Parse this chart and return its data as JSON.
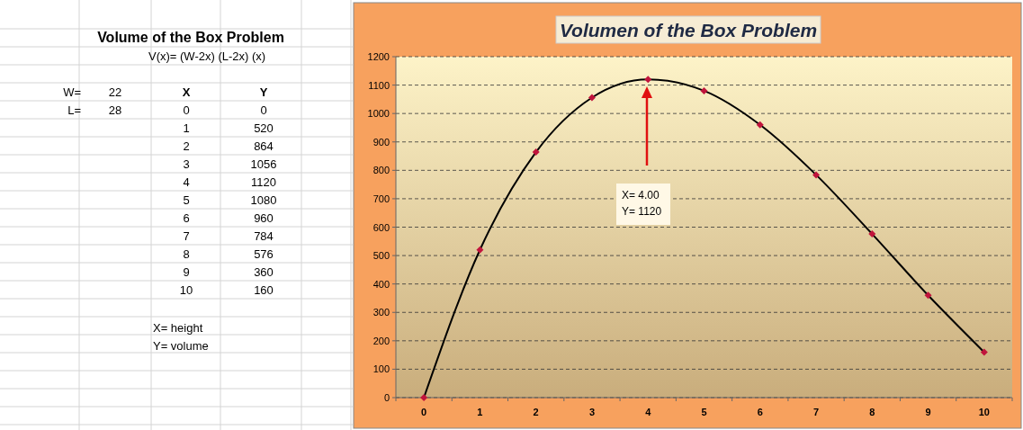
{
  "chart_data": {
    "type": "line",
    "title": "Volumen of the Box Problem",
    "categories": [
      "0",
      "1",
      "2",
      "3",
      "4",
      "5",
      "6",
      "7",
      "8",
      "9",
      "10"
    ],
    "series": [
      {
        "color": "#000000",
        "values": [
          0,
          520,
          864,
          1056,
          1120,
          1080,
          960,
          784,
          576,
          360,
          160
        ]
      }
    ],
    "marker": "diamond",
    "ylim": [
      0,
      1200
    ],
    "yticks": [
      0,
      100,
      200,
      300,
      400,
      500,
      600,
      700,
      800,
      900,
      1000,
      1100,
      1200
    ],
    "grid": "y",
    "annotations": [
      "X= 4.00\nY= 1120",
      "Volume of the Box Problem",
      "V(x)= (W-2x) (L-2x) (x)",
      "W=",
      "22",
      "L=",
      "28",
      "X",
      "Y",
      "X= height",
      "Y= volume",
      "0",
      "520",
      "864",
      "1056",
      "1120",
      "1080",
      "960",
      "784",
      "576",
      "360",
      "160"
    ]
  }
}
